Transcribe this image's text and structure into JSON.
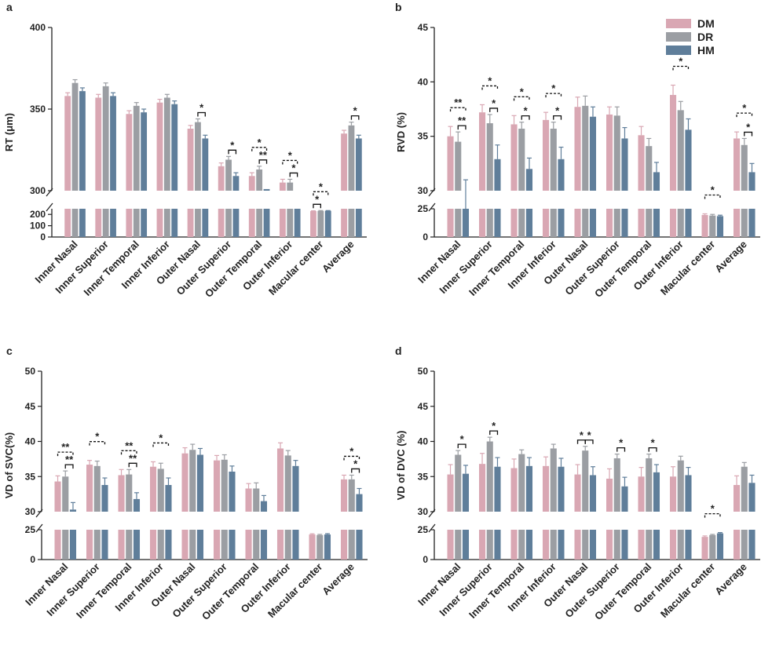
{
  "colors": {
    "DM": "#d9a7b3",
    "DR": "#9b9ea3",
    "HM": "#5f7e9a"
  },
  "legend": [
    {
      "name": "DM",
      "color": "#d9a7b3"
    },
    {
      "name": "DR",
      "color": "#9b9ea3"
    },
    {
      "name": "HM",
      "color": "#5f7e9a"
    }
  ],
  "chart_data": [
    {
      "panel": "a",
      "type": "bar",
      "ylabel": "RT (μm)",
      "categories": [
        "Inner Nasal",
        "Inner Superior",
        "Inner Temporal",
        "Inner Inferior",
        "Outer Nasal",
        "Outer Superior",
        "Outer Temporal",
        "Outer Inferior",
        "Macular center",
        "Average"
      ],
      "upper_axis": {
        "range": [
          300,
          400
        ],
        "ticks": [
          "300",
          "350",
          "400"
        ]
      },
      "lower_axis": {
        "range": [
          0,
          250
        ],
        "ticks": [
          "0",
          "100",
          "200"
        ]
      },
      "series": [
        {
          "name": "DM",
          "values": [
            358,
            357,
            347,
            354,
            338,
            315,
            309,
            305,
            229,
            335
          ],
          "errors": [
            2,
            2,
            2,
            2,
            2,
            2,
            2,
            2,
            3,
            2
          ]
        },
        {
          "name": "DR",
          "values": [
            366,
            364,
            352,
            357,
            342,
            319,
            313,
            305,
            231,
            340
          ],
          "errors": [
            2,
            2,
            2,
            2,
            2,
            2,
            2,
            2,
            3,
            2
          ]
        },
        {
          "name": "HM",
          "values": [
            361,
            358,
            348,
            353,
            332,
            309,
            301,
            300,
            232,
            332
          ],
          "errors": [
            2,
            2,
            2,
            2,
            2,
            2,
            0,
            0,
            2,
            2
          ]
        }
      ],
      "annotations": [
        {
          "category": "Outer Nasal",
          "pair": "DR-HM",
          "label": "*",
          "style": "solid"
        },
        {
          "category": "Outer Superior",
          "pair": "DR-HM",
          "label": "*",
          "style": "solid"
        },
        {
          "category": "Outer Temporal",
          "pair": "DM-HM",
          "label": "*",
          "style": "dashed"
        },
        {
          "category": "Outer Temporal",
          "pair": "DR-HM",
          "label": "**",
          "style": "solid"
        },
        {
          "category": "Outer Inferior",
          "pair": "DM-HM",
          "label": "*",
          "style": "dashed"
        },
        {
          "category": "Outer Inferior",
          "pair": "DR-HM",
          "label": "*",
          "style": "solid"
        },
        {
          "category": "Macular center",
          "pair": "DM-HM",
          "label": "*",
          "style": "dashed"
        },
        {
          "category": "Macular center",
          "pair": "DM-DR",
          "label": "*",
          "style": "solid"
        },
        {
          "category": "Average",
          "pair": "DR-HM",
          "label": "*",
          "style": "solid"
        }
      ]
    },
    {
      "panel": "b",
      "type": "bar",
      "ylabel": "RVD (%)",
      "categories": [
        "Inner Nasal",
        "Inner Superior",
        "Inner Temporal",
        "Inner Inferior",
        "Outer Nasal",
        "Outer Superior",
        "Outer Temporal",
        "Outer Inferior",
        "Macular center",
        "Average"
      ],
      "upper_axis": {
        "range": [
          30,
          45
        ],
        "ticks": [
          "30",
          "35",
          "40",
          "45"
        ]
      },
      "lower_axis": {
        "range": [
          0,
          25
        ],
        "ticks": [
          "0",
          "25"
        ]
      },
      "series": [
        {
          "name": "DM",
          "values": [
            35.0,
            37.2,
            36.1,
            36.5,
            37.7,
            37.0,
            35.1,
            38.8,
            19.5,
            34.8
          ],
          "errors": [
            0.9,
            0.7,
            0.8,
            0.7,
            0.9,
            0.7,
            0.8,
            0.9,
            1.0,
            0.6
          ]
        },
        {
          "name": "DR",
          "values": [
            34.5,
            36.2,
            35.7,
            35.7,
            37.8,
            36.9,
            34.1,
            37.4,
            19.0,
            34.2
          ],
          "errors": [
            0.9,
            0.8,
            0.6,
            0.6,
            0.9,
            0.8,
            0.7,
            0.8,
            1.0,
            0.6
          ]
        },
        {
          "name": "HM",
          "values": [
            29.5,
            32.9,
            32.0,
            32.9,
            36.8,
            34.8,
            31.7,
            35.6,
            18.5,
            31.7
          ],
          "errors": [
            1.5,
            1.3,
            1.0,
            1.1,
            0.9,
            1.0,
            0.9,
            1.0,
            0.8,
            0.8
          ]
        }
      ],
      "annotations": [
        {
          "category": "Inner Nasal",
          "pair": "DM-HM",
          "label": "**",
          "style": "dashed"
        },
        {
          "category": "Inner Nasal",
          "pair": "DR-HM",
          "label": "**",
          "style": "solid"
        },
        {
          "category": "Inner Superior",
          "pair": "DM-HM",
          "label": "*",
          "style": "dashed"
        },
        {
          "category": "Inner Superior",
          "pair": "DR-HM",
          "label": "*",
          "style": "solid"
        },
        {
          "category": "Inner Temporal",
          "pair": "DM-HM",
          "label": "*",
          "style": "dashed"
        },
        {
          "category": "Inner Temporal",
          "pair": "DR-HM",
          "label": "*",
          "style": "solid"
        },
        {
          "category": "Inner Inferior",
          "pair": "DM-HM",
          "label": "*",
          "style": "dashed"
        },
        {
          "category": "Inner Inferior",
          "pair": "DR-HM",
          "label": "*",
          "style": "solid"
        },
        {
          "category": "Outer Inferior",
          "pair": "DM-HM",
          "label": "*",
          "style": "dashed"
        },
        {
          "category": "Macular center",
          "pair": "DM-HM",
          "label": "*",
          "style": "dashed"
        },
        {
          "category": "Average",
          "pair": "DM-HM",
          "label": "*",
          "style": "dashed"
        },
        {
          "category": "Average",
          "pair": "DR-HM",
          "label": "*",
          "style": "solid"
        }
      ]
    },
    {
      "panel": "c",
      "type": "bar",
      "ylabel": "VD of SVC(%)",
      "categories": [
        "Inner Nasal",
        "Inner Superior",
        "Inner Temporal",
        "Inner Inferior",
        "Outer Nasal",
        "Outer Superior",
        "Outer Temporal",
        "Outer Inferior",
        "Macular center",
        "Average"
      ],
      "upper_axis": {
        "range": [
          30,
          50
        ],
        "ticks": [
          "30",
          "35",
          "40",
          "45",
          "50"
        ]
      },
      "lower_axis": {
        "range": [
          0,
          25
        ],
        "ticks": [
          "0",
          "25"
        ]
      },
      "series": [
        {
          "name": "DM",
          "values": [
            34.3,
            36.7,
            35.2,
            36.4,
            38.3,
            37.3,
            33.3,
            39.0,
            21.0,
            34.6
          ],
          "errors": [
            0.8,
            0.6,
            0.8,
            0.7,
            0.8,
            0.7,
            0.7,
            0.8,
            0.6,
            0.6
          ]
        },
        {
          "name": "DR",
          "values": [
            35.0,
            36.5,
            35.3,
            36.1,
            38.8,
            37.4,
            33.3,
            38.0,
            20.5,
            34.6
          ],
          "errors": [
            0.8,
            0.7,
            0.7,
            0.8,
            0.8,
            0.7,
            0.8,
            0.7,
            0.6,
            0.6
          ]
        },
        {
          "name": "HM",
          "values": [
            30.3,
            33.8,
            31.8,
            33.8,
            38.1,
            35.7,
            31.5,
            36.5,
            21.0,
            32.5
          ],
          "errors": [
            1.0,
            1.0,
            0.9,
            1.0,
            0.9,
            0.8,
            0.8,
            0.8,
            0.7,
            0.8
          ]
        }
      ],
      "annotations": [
        {
          "category": "Inner Nasal",
          "pair": "DM-HM",
          "label": "**",
          "style": "dashed"
        },
        {
          "category": "Inner Nasal",
          "pair": "DR-HM",
          "label": "**",
          "style": "solid"
        },
        {
          "category": "Inner Superior",
          "pair": "DM-HM",
          "label": "*",
          "style": "dashed"
        },
        {
          "category": "Inner Temporal",
          "pair": "DM-HM",
          "label": "**",
          "style": "dashed"
        },
        {
          "category": "Inner Temporal",
          "pair": "DR-HM",
          "label": "**",
          "style": "solid"
        },
        {
          "category": "Inner Inferior",
          "pair": "DM-HM",
          "label": "*",
          "style": "dashed"
        },
        {
          "category": "Average",
          "pair": "DM-HM",
          "label": "*",
          "style": "dashed"
        },
        {
          "category": "Average",
          "pair": "DR-HM",
          "label": "*",
          "style": "solid"
        }
      ]
    },
    {
      "panel": "d",
      "type": "bar",
      "ylabel": "VD of DVC (%)",
      "categories": [
        "Inner Nasal",
        "Inner Superior",
        "Inner Temporal",
        "Inner Inferior",
        "Outer Nasal",
        "Outer Superior",
        "Outer Temporal",
        "Outer Inferior",
        "Macular center",
        "Average"
      ],
      "upper_axis": {
        "range": [
          30,
          50
        ],
        "ticks": [
          "30",
          "35",
          "40",
          "45",
          "50"
        ]
      },
      "lower_axis": {
        "range": [
          0,
          25
        ],
        "ticks": [
          "0",
          "25"
        ]
      },
      "series": [
        {
          "name": "DM",
          "values": [
            35.3,
            36.8,
            36.2,
            36.5,
            35.3,
            34.7,
            35.0,
            35.0,
            19.0,
            33.8
          ],
          "errors": [
            1.4,
            1.5,
            1.3,
            1.3,
            1.4,
            1.4,
            1.3,
            1.4,
            0.8,
            1.3
          ]
        },
        {
          "name": "DR",
          "values": [
            38.1,
            40.0,
            38.2,
            39.0,
            38.7,
            37.6,
            37.6,
            37.3,
            20.5,
            36.4
          ],
          "errors": [
            0.6,
            0.6,
            0.6,
            0.6,
            0.6,
            0.6,
            0.6,
            0.6,
            0.6,
            0.6
          ]
        },
        {
          "name": "HM",
          "values": [
            35.4,
            36.4,
            36.5,
            36.4,
            35.2,
            33.6,
            35.6,
            35.2,
            22.0,
            34.1
          ],
          "errors": [
            1.2,
            1.3,
            1.2,
            1.2,
            1.2,
            1.3,
            1.1,
            1.1,
            0.6,
            1.1
          ]
        }
      ],
      "annotations": [
        {
          "category": "Inner Nasal",
          "pair": "DR-HM",
          "label": "*",
          "style": "solid"
        },
        {
          "category": "Inner Superior",
          "pair": "DR-HM",
          "label": "*",
          "style": "solid"
        },
        {
          "category": "Outer Nasal",
          "pair": "DM-DR",
          "label": "*",
          "style": "solid"
        },
        {
          "category": "Outer Nasal",
          "pair": "DR-HM",
          "label": "*",
          "style": "solid"
        },
        {
          "category": "Outer Superior",
          "pair": "DR-HM",
          "label": "*",
          "style": "solid"
        },
        {
          "category": "Outer Temporal",
          "pair": "DR-HM",
          "label": "*",
          "style": "solid"
        },
        {
          "category": "Macular center",
          "pair": "DM-HM",
          "label": "*",
          "style": "dashed"
        }
      ]
    }
  ]
}
